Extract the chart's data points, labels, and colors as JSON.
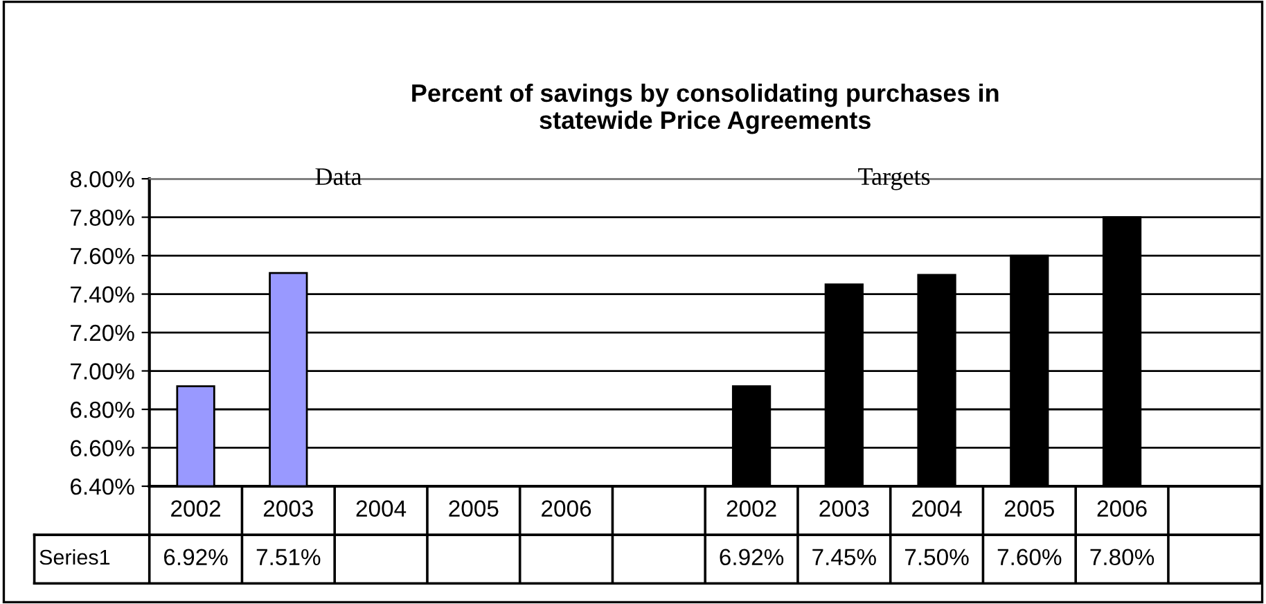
{
  "chart_data": {
    "type": "bar",
    "title": "Percent of savings by consolidating purchases in\nstatewide Price Agreements",
    "categories": [
      "2002",
      "2003",
      "2004",
      "2005",
      "2006",
      null,
      "2002",
      "2003",
      "2004",
      "2005",
      "2006",
      null
    ],
    "series": [
      {
        "name": "Series1",
        "values": [
          6.92,
          7.51,
          null,
          null,
          null,
          null,
          6.92,
          7.45,
          7.5,
          7.6,
          7.8,
          null
        ],
        "colors": [
          "#9999ff",
          "#9999ff",
          "#9999ff",
          "#9999ff",
          "#9999ff",
          "#9999ff",
          "#000000",
          "#000000",
          "#000000",
          "#000000",
          "#000000",
          "#000000"
        ],
        "value_labels": [
          "6.92%",
          "7.51%",
          null,
          null,
          null,
          null,
          "6.92%",
          "7.45%",
          "7.50%",
          "7.60%",
          "7.80%",
          null
        ]
      }
    ],
    "ylim": [
      6.4,
      8.0
    ],
    "yticks": [
      {
        "value": 6.4,
        "label": "6.40%"
      },
      {
        "value": 6.6,
        "label": "6.60%"
      },
      {
        "value": 6.8,
        "label": "6.80%"
      },
      {
        "value": 7.0,
        "label": "7.00%"
      },
      {
        "value": 7.2,
        "label": "7.20%"
      },
      {
        "value": 7.4,
        "label": "7.40%"
      },
      {
        "value": 7.6,
        "label": "7.60%"
      },
      {
        "value": 7.8,
        "label": "7.80%"
      },
      {
        "value": 8.0,
        "label": "8.00%"
      }
    ],
    "grid": "y",
    "annotations": [
      "Data",
      "Targets"
    ]
  }
}
